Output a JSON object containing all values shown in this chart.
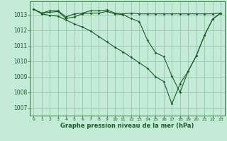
{
  "bg_color": "#c4ead8",
  "grid_color": "#96c8a8",
  "line_color": "#1a5c28",
  "xlabel": "Graphe pression niveau de la mer (hPa)",
  "xlim": [
    -0.5,
    23.5
  ],
  "ylim": [
    1006.5,
    1013.85
  ],
  "yticks": [
    1007,
    1008,
    1009,
    1010,
    1011,
    1012,
    1013
  ],
  "xticks": [
    0,
    1,
    2,
    3,
    4,
    5,
    6,
    7,
    8,
    9,
    10,
    11,
    12,
    13,
    14,
    15,
    16,
    17,
    18,
    19,
    20,
    21,
    22,
    23
  ],
  "series1_x": [
    0,
    1,
    2,
    3,
    4,
    5,
    6,
    7,
    8,
    9,
    10,
    11,
    12,
    13,
    14,
    15,
    16,
    17,
    18,
    19,
    20,
    21,
    22,
    23
  ],
  "series1_y": [
    1013.35,
    1013.1,
    1013.25,
    1013.25,
    1012.85,
    1013.05,
    1013.1,
    1013.25,
    1013.25,
    1013.3,
    1013.1,
    1013.05,
    1013.1,
    1013.05,
    1013.05,
    1013.05,
    1013.05,
    1013.05,
    1013.05,
    1013.05,
    1013.05,
    1013.05,
    1013.05,
    1013.1
  ],
  "series2_x": [
    0,
    1,
    2,
    3,
    4,
    5,
    6,
    7,
    8,
    9,
    10,
    11,
    12,
    13,
    14,
    15,
    16,
    17,
    18,
    19,
    20,
    21,
    22,
    23
  ],
  "series2_y": [
    1013.35,
    1013.1,
    1013.15,
    1013.2,
    1012.75,
    1012.85,
    1013.05,
    1013.1,
    1013.1,
    1013.2,
    1013.05,
    1013.0,
    1012.75,
    1012.55,
    1011.35,
    1010.55,
    1010.3,
    1009.05,
    1008.0,
    1009.35,
    1010.35,
    1011.65,
    1012.7,
    1013.1
  ],
  "series3_x": [
    0,
    1,
    2,
    3,
    4,
    5,
    6,
    7,
    8,
    9,
    10,
    11,
    12,
    13,
    14,
    15,
    16,
    17,
    18,
    19,
    20,
    21,
    22,
    23
  ],
  "series3_y": [
    1013.35,
    1013.05,
    1012.95,
    1012.9,
    1012.65,
    1012.4,
    1012.2,
    1011.95,
    1011.6,
    1011.25,
    1010.9,
    1010.6,
    1010.25,
    1009.9,
    1009.55,
    1009.0,
    1008.7,
    1007.25,
    1008.55,
    1009.35,
    1010.35,
    1011.65,
    1012.7,
    1013.1
  ]
}
